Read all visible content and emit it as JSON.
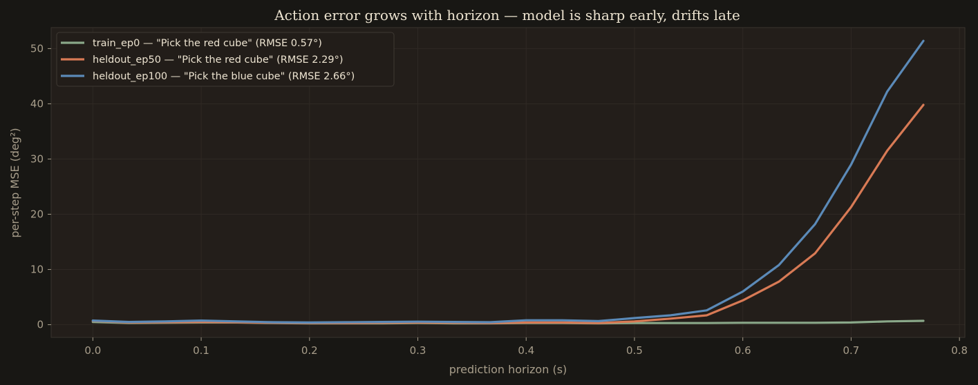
{
  "chart_data": {
    "type": "line",
    "title": "Action error grows with horizon — model is sharp early, drifts late",
    "xlabel": "prediction horizon (s)",
    "ylabel": "per-step MSE  (deg²)",
    "xlim": [
      -0.0385,
      0.805
    ],
    "ylim": [
      -2.3,
      53.8
    ],
    "xticks": [
      0.0,
      0.1,
      0.2,
      0.3,
      0.4,
      0.5,
      0.6,
      0.7,
      0.8
    ],
    "xtick_labels": [
      "0.0",
      "0.1",
      "0.2",
      "0.3",
      "0.4",
      "0.5",
      "0.6",
      "0.7",
      "0.8"
    ],
    "yticks": [
      0,
      10,
      20,
      30,
      40,
      50
    ],
    "ytick_labels": [
      "0",
      "10",
      "20",
      "30",
      "40",
      "50"
    ],
    "grid": true,
    "legend_position": "top-left",
    "colors": {
      "figure_bg": "#181714",
      "axes_bg": "#231e1a",
      "grid": "#2f2924",
      "spine": "#3a342e",
      "legend_bg": "#221d19",
      "legend_border": "#3f3933"
    },
    "x": [
      0.0,
      0.0333,
      0.0667,
      0.1,
      0.1333,
      0.1667,
      0.2,
      0.2333,
      0.2667,
      0.3,
      0.3333,
      0.3667,
      0.4,
      0.4333,
      0.4667,
      0.5,
      0.5333,
      0.5667,
      0.6,
      0.6333,
      0.6667,
      0.7,
      0.7333,
      0.7667
    ],
    "series": [
      {
        "name": "train_ep0 — \"Pick the red cube\"  (RMSE 0.57°)",
        "color": "#8aa889",
        "values": [
          0.5,
          0.3,
          0.35,
          0.4,
          0.4,
          0.3,
          0.25,
          0.25,
          0.25,
          0.3,
          0.25,
          0.25,
          0.3,
          0.3,
          0.25,
          0.3,
          0.3,
          0.3,
          0.35,
          0.35,
          0.35,
          0.4,
          0.6,
          0.7
        ]
      },
      {
        "name": "heldout_ep50 — \"Pick the red cube\"  (RMSE 2.29°)",
        "color": "#d87a55",
        "values": [
          0.7,
          0.4,
          0.45,
          0.5,
          0.45,
          0.35,
          0.3,
          0.3,
          0.35,
          0.4,
          0.35,
          0.3,
          0.4,
          0.4,
          0.3,
          0.6,
          1.1,
          1.7,
          4.4,
          7.8,
          12.9,
          21.3,
          31.5,
          39.8
        ]
      },
      {
        "name": "heldout_ep100 — \"Pick the blue cube\"  (RMSE 2.66°)",
        "color": "#5b8ab8",
        "values": [
          0.75,
          0.5,
          0.6,
          0.75,
          0.6,
          0.45,
          0.4,
          0.45,
          0.5,
          0.55,
          0.5,
          0.45,
          0.8,
          0.8,
          0.65,
          1.2,
          1.7,
          2.6,
          6.0,
          10.8,
          18.2,
          29.0,
          42.2,
          51.4
        ]
      }
    ]
  }
}
